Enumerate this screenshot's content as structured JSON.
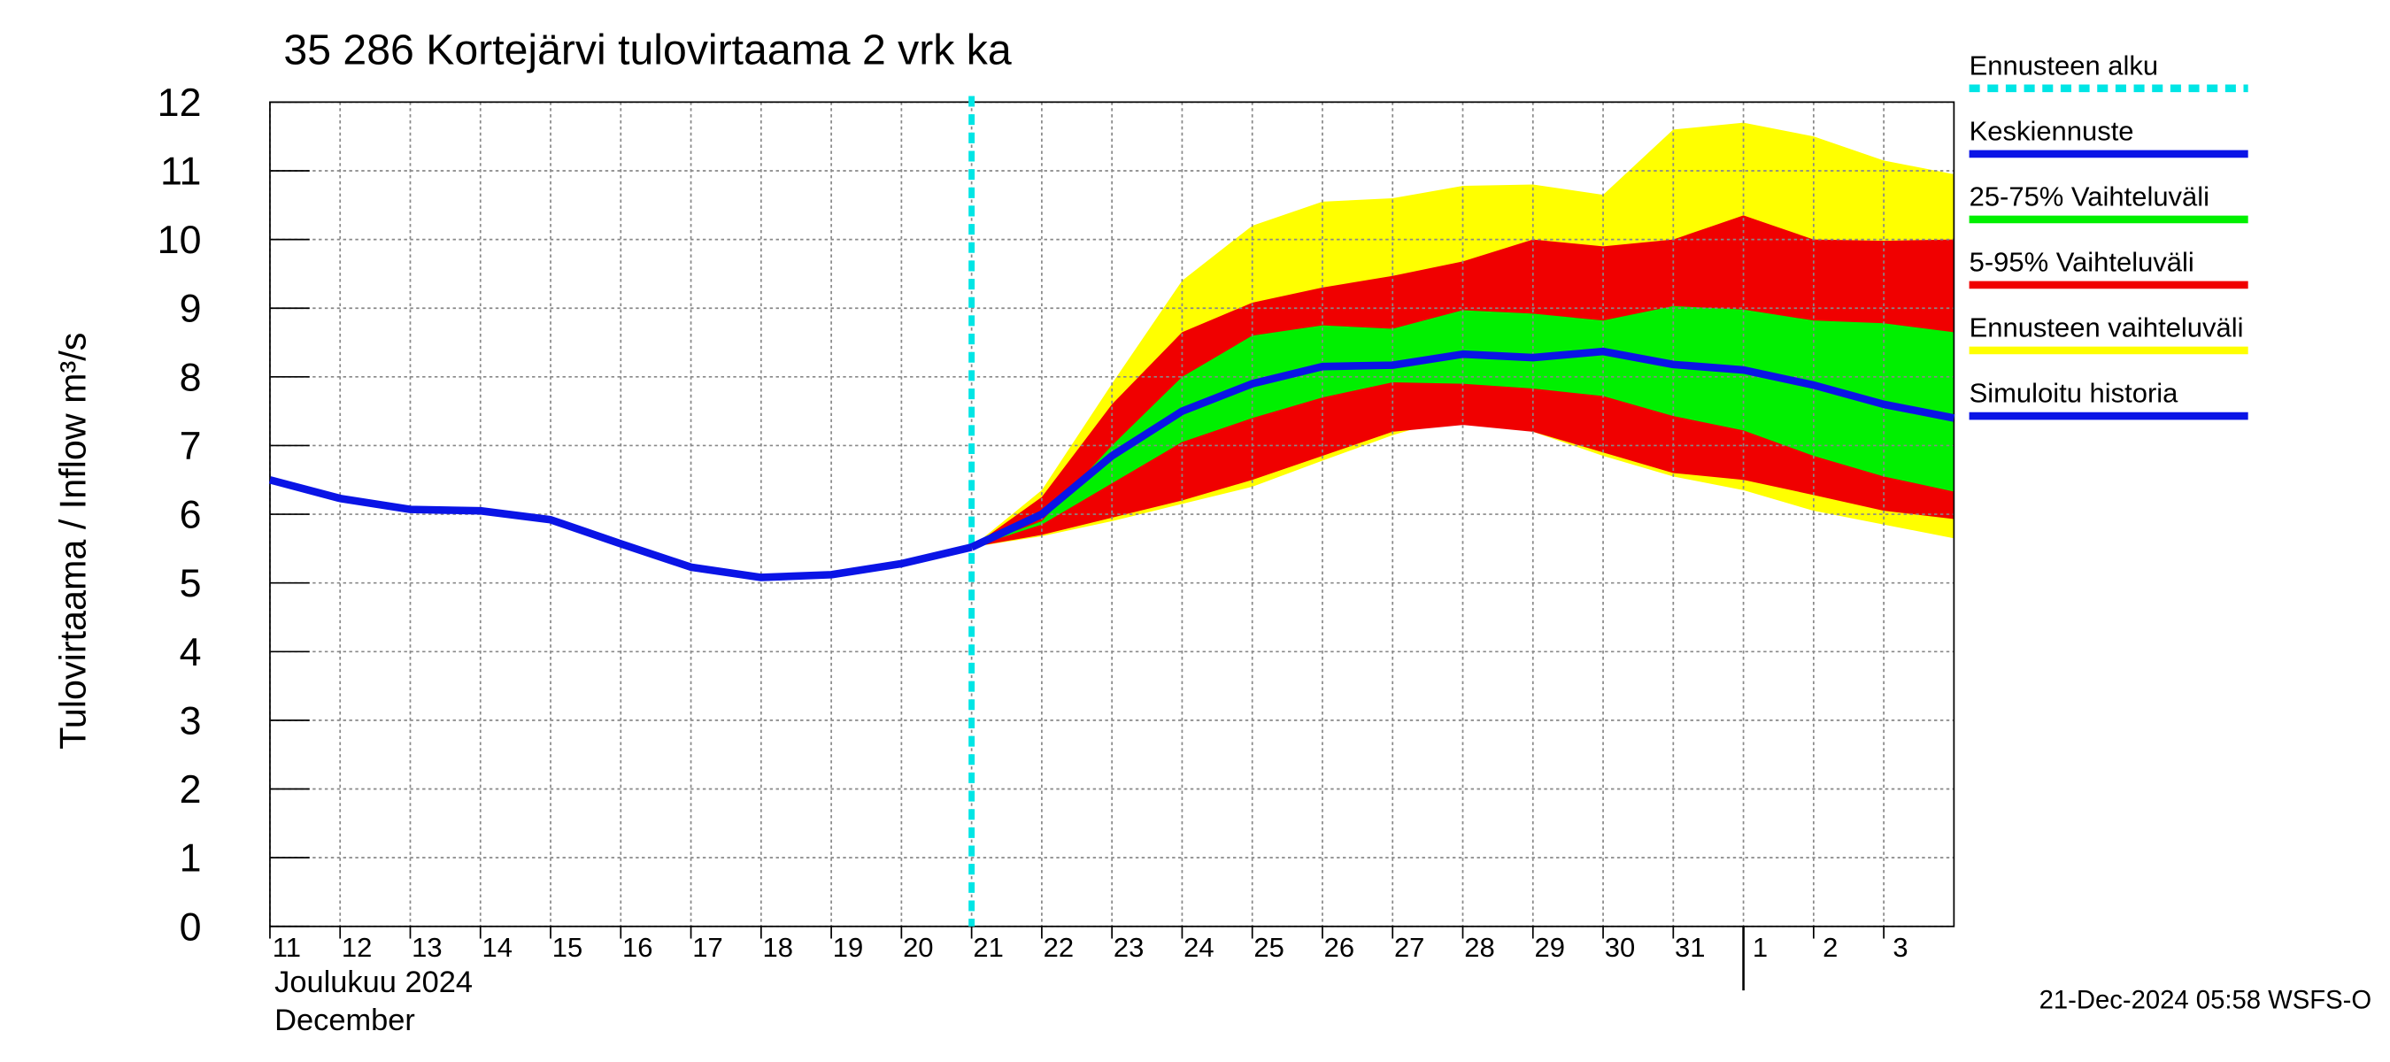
{
  "chart_data": {
    "type": "line",
    "title": "35 286 Kortejärvi tulovirtaama 2 vrk ka",
    "y_label": "Tulovirtaama / Inflow    m³/s",
    "x_label_fi": "Joulukuu  2024",
    "x_label_en": "December",
    "footer": "21-Dec-2024 05:58 WSFS-O",
    "grid": true,
    "legend": "right",
    "xlim": [
      0,
      24
    ],
    "xticks": [
      {
        "value": 0,
        "label": "11"
      },
      {
        "value": 1,
        "label": "12"
      },
      {
        "value": 2,
        "label": "13"
      },
      {
        "value": 3,
        "label": "14"
      },
      {
        "value": 4,
        "label": "15"
      },
      {
        "value": 5,
        "label": "16"
      },
      {
        "value": 6,
        "label": "17"
      },
      {
        "value": 7,
        "label": "18"
      },
      {
        "value": 8,
        "label": "19"
      },
      {
        "value": 9,
        "label": "20"
      },
      {
        "value": 10,
        "label": "21"
      },
      {
        "value": 11,
        "label": "22"
      },
      {
        "value": 12,
        "label": "23"
      },
      {
        "value": 13,
        "label": "24"
      },
      {
        "value": 14,
        "label": "25"
      },
      {
        "value": 15,
        "label": "26"
      },
      {
        "value": 16,
        "label": "27"
      },
      {
        "value": 17,
        "label": "28"
      },
      {
        "value": 18,
        "label": "29"
      },
      {
        "value": 19,
        "label": "30"
      },
      {
        "value": 20,
        "label": "31"
      },
      {
        "value": 21,
        "label": "1"
      },
      {
        "value": 22,
        "label": "2"
      },
      {
        "value": 23,
        "label": "3"
      }
    ],
    "month_boundary": 21,
    "ylim": [
      0,
      12
    ],
    "yticks": [
      0,
      1,
      2,
      3,
      4,
      5,
      6,
      7,
      8,
      9,
      10,
      11,
      12
    ],
    "forecast_start": {
      "name": "Ennusteen alku",
      "x": 10,
      "color": "#00e5e5"
    },
    "series": [
      {
        "name": "Keskiennuste",
        "kind": "line",
        "color": "#0a14e6",
        "x": [
          10,
          11,
          12,
          13,
          14,
          15,
          16,
          17,
          18,
          19,
          20,
          21,
          22,
          23,
          24
        ],
        "values": [
          5.52,
          6.0,
          6.85,
          7.5,
          7.9,
          8.15,
          8.17,
          8.33,
          8.28,
          8.37,
          8.18,
          8.1,
          7.88,
          7.6,
          7.4
        ]
      },
      {
        "name": "25-75% Vaihteluväli",
        "kind": "band",
        "color": "#00f000",
        "x": [
          10,
          11,
          12,
          13,
          14,
          15,
          16,
          17,
          18,
          19,
          20,
          21,
          22,
          23,
          24
        ],
        "upper": [
          5.52,
          5.9,
          7.0,
          8.0,
          8.6,
          8.75,
          8.7,
          8.97,
          8.92,
          8.82,
          9.03,
          8.98,
          8.82,
          8.78,
          8.65
        ],
        "lower": [
          5.52,
          5.85,
          6.45,
          7.05,
          7.4,
          7.7,
          7.92,
          7.9,
          7.83,
          7.72,
          7.43,
          7.22,
          6.85,
          6.55,
          6.33
        ]
      },
      {
        "name": "5-95% Vaihteluväli",
        "kind": "band",
        "color": "#f00000",
        "x": [
          10,
          11,
          12,
          13,
          14,
          15,
          16,
          17,
          18,
          19,
          20,
          21,
          22,
          23,
          24
        ],
        "upper": [
          5.52,
          6.25,
          7.6,
          8.65,
          9.08,
          9.3,
          9.47,
          9.68,
          10.0,
          9.9,
          10.0,
          10.35,
          10.0,
          9.98,
          10.0
        ],
        "lower": [
          5.52,
          5.7,
          5.95,
          6.2,
          6.5,
          6.85,
          7.2,
          7.3,
          7.2,
          6.9,
          6.6,
          6.5,
          6.28,
          6.05,
          5.93
        ]
      },
      {
        "name": "Ennusteen vaihteluväli",
        "kind": "band",
        "color": "#ffff00",
        "x": [
          10,
          11,
          12,
          13,
          14,
          15,
          16,
          17,
          18,
          19,
          20,
          21,
          22,
          23,
          24
        ],
        "upper": [
          5.52,
          6.35,
          7.9,
          9.4,
          10.2,
          10.55,
          10.6,
          10.78,
          10.8,
          10.65,
          11.6,
          11.7,
          11.5,
          11.15,
          10.95
        ],
        "lower": [
          5.52,
          5.68,
          5.9,
          6.15,
          6.4,
          6.78,
          7.15,
          7.45,
          7.2,
          6.85,
          6.55,
          6.35,
          6.05,
          5.85,
          5.65
        ]
      },
      {
        "name": "Simuloitu historia",
        "kind": "line",
        "color": "#0a14e6",
        "x": [
          0,
          1,
          2,
          3,
          4,
          5,
          6,
          7,
          8,
          9,
          10
        ],
        "values": [
          6.5,
          6.23,
          6.07,
          6.05,
          5.92,
          5.57,
          5.23,
          5.08,
          5.12,
          5.28,
          5.52
        ]
      }
    ]
  }
}
